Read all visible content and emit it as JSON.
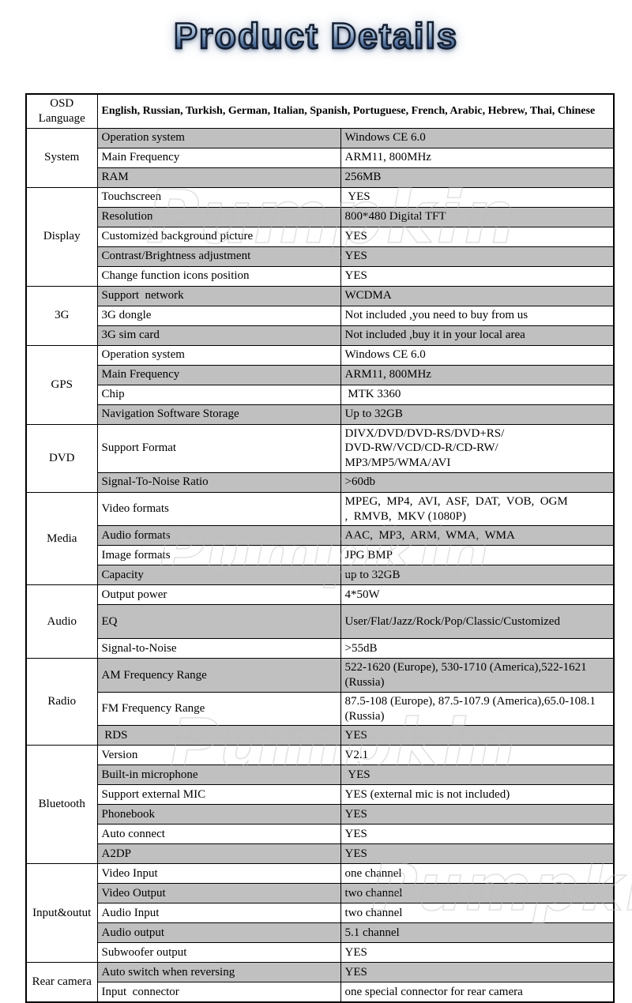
{
  "title": "Product Details",
  "watermark": "Pumpkin",
  "colors": {
    "page_bg": "#ffffff",
    "row_alt": "#c0c0c0",
    "border": "#000000",
    "title_gradient": [
      "#eef4fb",
      "#8aa5c4",
      "#3a5680"
    ],
    "title_outline": "#151f31",
    "watermark_gray": "#bdbdbd"
  },
  "table": {
    "sections": [
      {
        "category": "OSD Language",
        "rows": [
          {
            "full": true,
            "bold": true,
            "label": null,
            "value": "English, Russian, Turkish, German, Italian, Spanish, Portuguese, French, Arabic, Hebrew, Thai, Chinese"
          }
        ]
      },
      {
        "category": "System",
        "rows": [
          {
            "label": "Operation system",
            "value": "Windows CE 6.0"
          },
          {
            "label": "Main Frequency",
            "value": "ARM11, 800MHz"
          },
          {
            "label": "RAM",
            "value": "256MB"
          }
        ]
      },
      {
        "category": "Display",
        "rows": [
          {
            "label": "Touchscreen",
            "value": " YES"
          },
          {
            "label": "Resolution",
            "value": "800*480 Digital TFT"
          },
          {
            "label": "Customized background picture",
            "value": "YES"
          },
          {
            "label": "Contrast/Brightness adjustment",
            "value": "YES"
          },
          {
            "label": "Change function icons position",
            "value": "YES"
          }
        ]
      },
      {
        "category": "3G",
        "rows": [
          {
            "label": "Support  network",
            "value": "WCDMA"
          },
          {
            "label": "3G dongle",
            "value": "Not included ,you need to buy from us"
          },
          {
            "label": "3G sim card",
            "value": "Not included ,buy it in your local area"
          }
        ]
      },
      {
        "category": "GPS",
        "rows": [
          {
            "label": "Operation system",
            "value": "Windows CE 6.0"
          },
          {
            "label": "Main Frequency",
            "value": "ARM11, 800MHz"
          },
          {
            "label": "Chip",
            "value": " MTK 3360"
          },
          {
            "label": "Navigation Software Storage",
            "value": "Up to 32GB"
          }
        ]
      },
      {
        "category": "DVD",
        "rows": [
          {
            "label": "Support Format",
            "value": "DIVX/DVD/DVD-RS/DVD+RS/\nDVD-RW/VCD/CD-R/CD-RW/\nMP3/MP5/WMA/AVI"
          },
          {
            "label": "Signal-To-Noise Ratio",
            "value": ">60db"
          }
        ]
      },
      {
        "category": "Media",
        "rows": [
          {
            "label": "Video formats",
            "value": "MPEG,  MP4,  AVI,  ASF,  DAT,  VOB,  OGM\n,  RMVB,  MKV (1080P)"
          },
          {
            "label": "Audio formats",
            "value": "AAC,  MP3,  ARM,  WMA,  WMA"
          },
          {
            "label": "Image formats",
            "value": "JPG BMP"
          },
          {
            "label": "Capacity",
            "value": "up to 32GB"
          }
        ]
      },
      {
        "category": "Audio",
        "rows": [
          {
            "label": "Output power",
            "value": "4*50W"
          },
          {
            "label": "EQ",
            "value": "User/Flat/Jazz/Rock/Pop/Classic/Customized",
            "tall": true
          },
          {
            "label": "Signal-to-Noise",
            "value": ">55dB"
          }
        ]
      },
      {
        "category": "Radio",
        "rows": [
          {
            "label": "AM Frequency Range",
            "value": "522-1620 (Europe), 530-1710 (America),522-1621 (Russia)"
          },
          {
            "label": "FM Frequency Range",
            "value": "87.5-108 (Europe), 87.5-107.9 (America),65.0-108.1 (Russia)"
          },
          {
            "label": " RDS",
            "value": "YES"
          }
        ]
      },
      {
        "category": "Bluetooth",
        "rows": [
          {
            "label": "Version",
            "value": "V2.1"
          },
          {
            "label": "Built-in microphone",
            "value": " YES"
          },
          {
            "label": "Support external MIC",
            "value": "YES (external mic is not included)"
          },
          {
            "label": "Phonebook",
            "value": "YES"
          },
          {
            "label": "Auto connect",
            "value": "YES"
          },
          {
            "label": "A2DP",
            "value": "YES"
          }
        ]
      },
      {
        "category": "Input&outut",
        "rows": [
          {
            "label": "Video Input",
            "value": "one channel"
          },
          {
            "label": "Video Output",
            "value": "two channel"
          },
          {
            "label": "Audio Input",
            "value": "two channel"
          },
          {
            "label": "Audio output",
            "value": "5.1 channel"
          },
          {
            "label": "Subwoofer output",
            "value": "YES"
          }
        ]
      },
      {
        "category": "Rear camera",
        "rows": [
          {
            "label": "Auto switch when reversing",
            "value": "YES"
          },
          {
            "label": "Input  connector",
            "value": "one special connector for rear camera"
          }
        ]
      }
    ]
  }
}
